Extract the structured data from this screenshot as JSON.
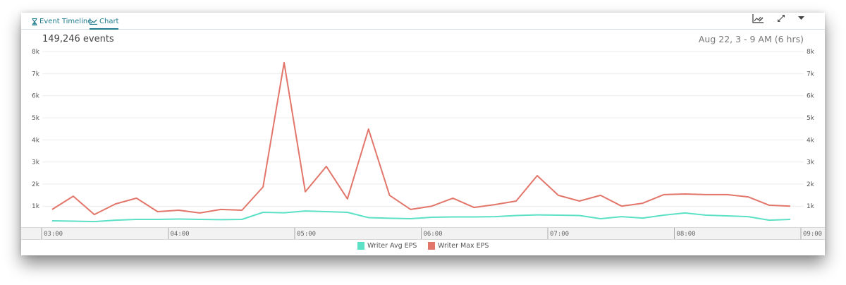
{
  "tabs": [
    {
      "label": "Event Timeline",
      "icon": "hourglass-icon",
      "active": false
    },
    {
      "label": "Chart",
      "icon": "line-chart-icon",
      "active": true
    }
  ],
  "toolbar": {
    "icons": [
      "chart-options-icon",
      "expand-icon",
      "dropdown-caret-icon"
    ]
  },
  "summary": {
    "event_count": "149,246 events",
    "time_range": "Aug 22, 3 - 9 AM  (6 hrs)"
  },
  "colors": {
    "avg": "#5ce0c6",
    "max": "#e2766a",
    "accent": "#1f7a8c",
    "grid": "#ececec"
  },
  "chart_data": {
    "type": "line",
    "title": "",
    "xlabel": "",
    "ylabel": "",
    "ylim": [
      0,
      8000
    ],
    "grid": true,
    "legend_position": "bottom",
    "y_ticks": [
      "1k",
      "2k",
      "3k",
      "4k",
      "5k",
      "6k",
      "7k",
      "8k"
    ],
    "y_tick_values": [
      1000,
      2000,
      3000,
      4000,
      5000,
      6000,
      7000,
      8000
    ],
    "x_ticks": [
      "03:00",
      "04:00",
      "05:00",
      "06:00",
      "07:00",
      "08:00",
      "09:00"
    ],
    "x": [
      "03:05",
      "03:15",
      "03:25",
      "03:35",
      "03:45",
      "03:55",
      "04:05",
      "04:15",
      "04:25",
      "04:35",
      "04:45",
      "04:55",
      "05:05",
      "05:15",
      "05:25",
      "05:35",
      "05:45",
      "05:55",
      "06:05",
      "06:15",
      "06:25",
      "06:35",
      "06:45",
      "06:55",
      "07:05",
      "07:15",
      "07:25",
      "07:35",
      "07:45",
      "07:55",
      "08:05",
      "08:15",
      "08:25",
      "08:35",
      "08:45",
      "08:55"
    ],
    "series": [
      {
        "name": "Writer Avg EPS",
        "color": "#5ce0c6",
        "values": [
          335,
          320,
          300,
          365,
          400,
          400,
          415,
          400,
          385,
          400,
          720,
          700,
          780,
          750,
          720,
          480,
          450,
          430,
          495,
          510,
          510,
          525,
          575,
          605,
          590,
          575,
          430,
          525,
          460,
          590,
          690,
          590,
          560,
          525,
          365,
          400
        ]
      },
      {
        "name": "Writer Max EPS",
        "color": "#e2766a",
        "values": [
          850,
          1450,
          620,
          1100,
          1360,
          750,
          815,
          690,
          850,
          815,
          1870,
          7500,
          1650,
          2800,
          1330,
          4490,
          1490,
          850,
          1000,
          1360,
          940,
          1070,
          1230,
          2380,
          1490,
          1230,
          1490,
          1000,
          1130,
          1520,
          1550,
          1520,
          1520,
          1420,
          1040,
          1000
        ]
      }
    ]
  }
}
